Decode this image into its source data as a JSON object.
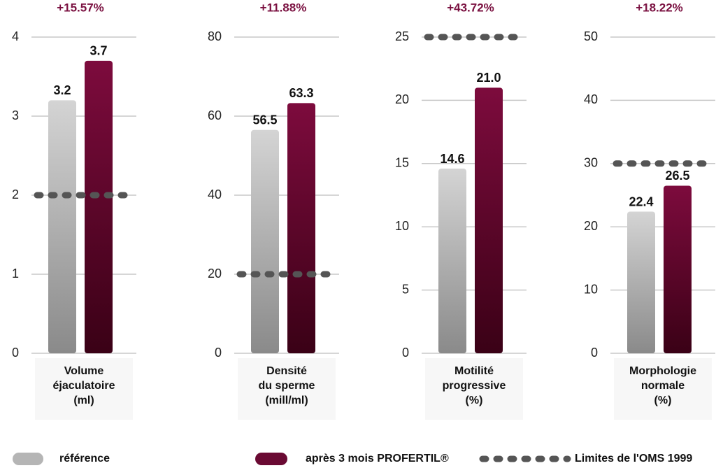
{
  "chart_data": [
    {
      "type": "bar",
      "annotation": "+15.57%",
      "categories": [
        "Volume\néjaculatoire\n(ml)"
      ],
      "ylim": [
        0,
        4
      ],
      "yticks": [
        0,
        1,
        2,
        3,
        4
      ],
      "grid": true,
      "series": [
        {
          "name": "référence",
          "color": "#b5b5b5",
          "values": [
            3.2
          ]
        },
        {
          "name": "après 3 mois PROFERTIL®",
          "color": "#6a0a33",
          "values": [
            3.7
          ]
        }
      ],
      "reference_line": {
        "name": "Limites de l'OMS 1999",
        "color": "#555555",
        "value": 2
      }
    },
    {
      "type": "bar",
      "annotation": "+11.88%",
      "categories": [
        "Densité\ndu sperme\n(mill/ml)"
      ],
      "ylim": [
        0,
        80
      ],
      "yticks": [
        0,
        20,
        40,
        60,
        80
      ],
      "grid": true,
      "series": [
        {
          "name": "référence",
          "color": "#b5b5b5",
          "values": [
            56.5
          ]
        },
        {
          "name": "après 3 mois PROFERTIL®",
          "color": "#6a0a33",
          "values": [
            63.3
          ]
        }
      ],
      "reference_line": {
        "name": "Limites de l'OMS 1999",
        "color": "#555555",
        "value": 20
      }
    },
    {
      "type": "bar",
      "annotation": "+43.72%",
      "categories": [
        "Motilité\nprogressive\n(%)"
      ],
      "ylim": [
        0,
        25
      ],
      "yticks": [
        0,
        5,
        10,
        15,
        20,
        25
      ],
      "grid": true,
      "series": [
        {
          "name": "référence",
          "color": "#b5b5b5",
          "values": [
            14.6
          ]
        },
        {
          "name": "après 3 mois PROFERTIL®",
          "color": "#6a0a33",
          "values": [
            21
          ],
          "value_labels": [
            "21.0"
          ]
        }
      ],
      "reference_line": {
        "name": "Limites de l'OMS 1999",
        "color": "#555555",
        "value": 25
      }
    },
    {
      "type": "bar",
      "annotation": "+18.22%",
      "categories": [
        "Morphologie\nnormale\n(%)"
      ],
      "ylim": [
        0,
        50
      ],
      "yticks": [
        0,
        10,
        20,
        30,
        40,
        50
      ],
      "grid": true,
      "series": [
        {
          "name": "référence",
          "color": "#b5b5b5",
          "values": [
            22.4
          ]
        },
        {
          "name": "après 3 mois PROFERTIL®",
          "color": "#6a0a33",
          "values": [
            26.5
          ]
        }
      ],
      "reference_line": {
        "name": "Limites de l'OMS 1999",
        "color": "#555555",
        "value": 30
      }
    }
  ]
}
